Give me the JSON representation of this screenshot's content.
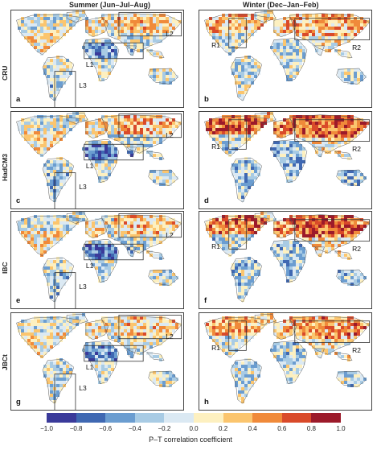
{
  "columns": [
    {
      "title": "Summer (Jun–Jul–Aug)"
    },
    {
      "title": "Winter (Dec–Jan–Feb)"
    }
  ],
  "rows": [
    {
      "label": "CRU",
      "panels": [
        {
          "letter": "a",
          "season": "summer",
          "regions": [
            "L1",
            "L2",
            "L3"
          ],
          "intensity": 0.55
        },
        {
          "letter": "b",
          "season": "winter",
          "regions": [
            "R1",
            "R2"
          ],
          "intensity": 0.5
        }
      ]
    },
    {
      "label": "HadCM3",
      "panels": [
        {
          "letter": "c",
          "season": "summer",
          "regions": [
            "L1",
            "L2",
            "L3"
          ],
          "intensity": 0.8
        },
        {
          "letter": "d",
          "season": "winter",
          "regions": [
            "R1",
            "R2"
          ],
          "intensity": 1.0
        }
      ]
    },
    {
      "label": "IBC",
      "panels": [
        {
          "letter": "e",
          "season": "summer",
          "regions": [
            "L1",
            "L2",
            "L3"
          ],
          "intensity": 0.75
        },
        {
          "letter": "f",
          "season": "winter",
          "regions": [
            "R1",
            "R2"
          ],
          "intensity": 0.9
        }
      ]
    },
    {
      "label": "JBCt",
      "panels": [
        {
          "letter": "g",
          "season": "summer",
          "regions": [
            "L1",
            "L2",
            "L3"
          ],
          "intensity": 0.6
        },
        {
          "letter": "h",
          "season": "winter",
          "regions": [
            "R1",
            "R2"
          ],
          "intensity": 0.6
        }
      ]
    }
  ],
  "colorbar": {
    "label": "P–T correlation coefficient",
    "ticks": [
      "−1.0",
      "−0.8",
      "−0.6",
      "−0.4",
      "−0.2",
      "0.0",
      "0.2",
      "0.4",
      "0.6",
      "0.8",
      "1.0"
    ],
    "min": -1.0,
    "max": 1.0,
    "colors": [
      "#3a3a9a",
      "#3f68b2",
      "#6b9dd0",
      "#a8cbe4",
      "#dbe9f3",
      "#fdf0c0",
      "#fbc56e",
      "#f08a3a",
      "#d94a2a",
      "#9c1a2a"
    ]
  }
}
